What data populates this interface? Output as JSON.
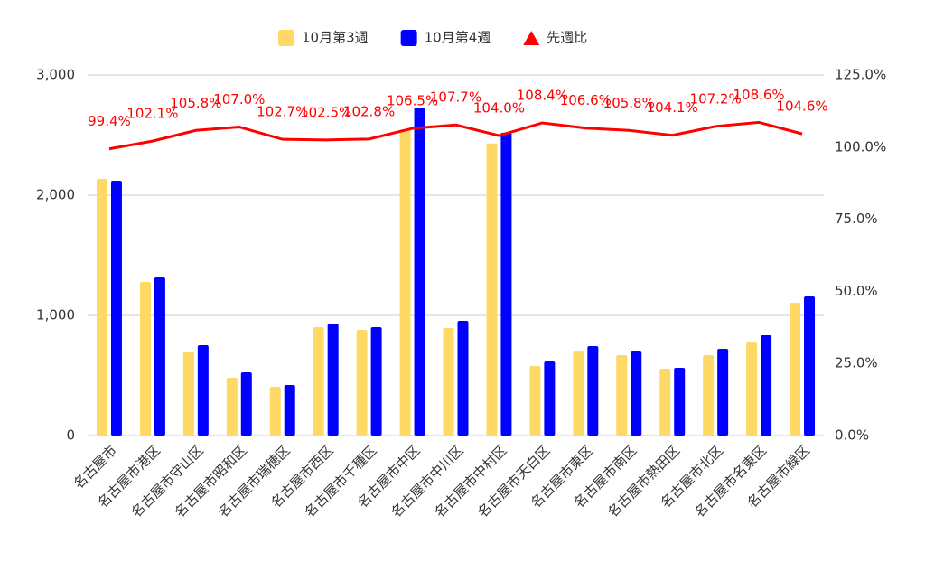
{
  "chart_data": {
    "type": "bar",
    "categories": [
      "名古屋市",
      "名古屋市港区",
      "名古屋市守山区",
      "名古屋市昭和区",
      "名古屋市瑞穂区",
      "名古屋市西区",
      "名古屋市千種区",
      "名古屋市中区",
      "名古屋市中川区",
      "名古屋市中村区",
      "名古屋市天白区",
      "名古屋市東区",
      "名古屋市南区",
      "名古屋市熱田区",
      "名古屋市北区",
      "名古屋市名東区",
      "名古屋市緑区"
    ],
    "series": [
      {
        "name": "10月第3週",
        "color": "#ffd966",
        "type": "bar",
        "values": [
          2135,
          1278,
          699,
          481,
          406,
          902,
          880,
          2549,
          895,
          2430,
          579,
          707,
          669,
          556,
          669,
          774,
          1105
        ]
      },
      {
        "name": "10月第4週",
        "color": "#0000ff",
        "type": "bar",
        "values": [
          2120,
          1316,
          752,
          526,
          421,
          932,
          902,
          2729,
          955,
          2520,
          617,
          744,
          707,
          564,
          722,
          835,
          1158
        ]
      },
      {
        "name": "先週比",
        "color": "#ff0000",
        "type": "line",
        "axis": "y2",
        "values": [
          99.4,
          102.1,
          105.8,
          107.0,
          102.7,
          102.5,
          102.8,
          106.5,
          107.7,
          104.0,
          108.4,
          106.6,
          105.8,
          104.1,
          107.2,
          108.6,
          104.6
        ],
        "value_labels": [
          "99.4%",
          "102.1%",
          "105.8%",
          "107.0%",
          "102.7%",
          "102.5%",
          "102.8%",
          "106.5%",
          "107.7%",
          "104.0%",
          "108.4%",
          "106.6%",
          "105.8%",
          "104.1%",
          "107.2%",
          "108.6%",
          "104.6%"
        ]
      }
    ],
    "ylim": [
      0,
      3000
    ],
    "yticks": [
      0,
      {
        "value": 1000,
        "label": "1,000"
      },
      {
        "value": 2000,
        "label": "2,000"
      },
      {
        "value": 3000,
        "label": "3,000"
      }
    ],
    "y2lim": [
      0,
      125
    ],
    "y2ticks": [
      {
        "value": 0,
        "label": "0.0%"
      },
      {
        "value": 25,
        "label": "25.0%"
      },
      {
        "value": 50,
        "label": "50.0%"
      },
      {
        "value": 75,
        "label": "75.0%"
      },
      {
        "value": 100,
        "label": "100.0%"
      },
      {
        "value": 125,
        "label": "125.0%"
      }
    ],
    "grid": true,
    "legend": "top"
  }
}
